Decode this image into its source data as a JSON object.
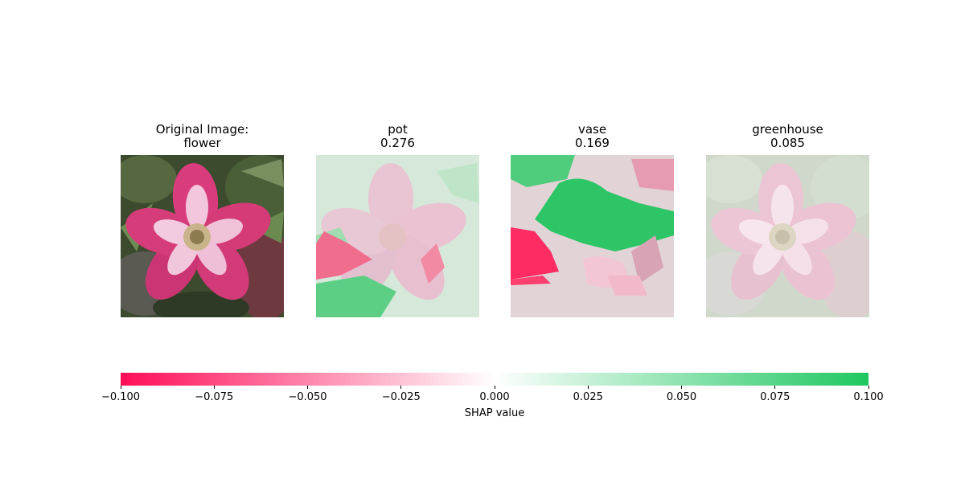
{
  "chart_data": {
    "type": "heatmap",
    "panels": [
      {
        "title": "Original Image:\nflower",
        "kind": "original",
        "class_label": "",
        "score": null
      },
      {
        "title": "pot\n0.276",
        "kind": "shap",
        "class_label": "pot",
        "score": 0.276
      },
      {
        "title": "vase\n0.169",
        "kind": "shap",
        "class_label": "vase",
        "score": 0.169
      },
      {
        "title": "greenhouse\n0.085",
        "kind": "shap",
        "class_label": "greenhouse",
        "score": 0.085
      }
    ],
    "colorbar": {
      "label": "SHAP value",
      "range": [
        -0.1,
        0.1
      ],
      "ticks": [
        "−0.100",
        "−0.075",
        "−0.050",
        "−0.025",
        "0.000",
        "0.025",
        "0.050",
        "0.075",
        "0.100"
      ],
      "tick_values": [
        -0.1,
        -0.075,
        -0.05,
        -0.025,
        0.0,
        0.025,
        0.05,
        0.075,
        0.1
      ],
      "negative_color": "#ff0d57",
      "positive_color": "#1ec760"
    }
  }
}
